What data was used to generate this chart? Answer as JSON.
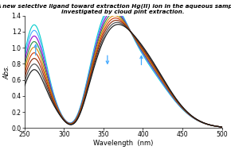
{
  "title_line1": "A new selective ligand toward extraction Hg(II) ion in the aqueous samples is",
  "title_line2": "investigated by cloud pint extraction.",
  "xlabel": "Wavelength  (nm)",
  "ylabel": "Abs.",
  "xlim": [
    250,
    500
  ],
  "ylim": [
    0,
    1.4
  ],
  "yticks": [
    0,
    0.2,
    0.4,
    0.6,
    0.8,
    1.0,
    1.2,
    1.4
  ],
  "xticks": [
    250,
    300,
    350,
    400,
    450,
    500
  ],
  "colors_draw_order": [
    "#00cccc",
    "#44aaff",
    "#9900cc",
    "#228844",
    "#dd8800",
    "#cc3300",
    "#882200",
    "#444444",
    "#111111"
  ],
  "arrow_color": "#44aaff",
  "title_fontsize": 5.2,
  "axis_fontsize": 6.0,
  "tick_fontsize": 5.5
}
